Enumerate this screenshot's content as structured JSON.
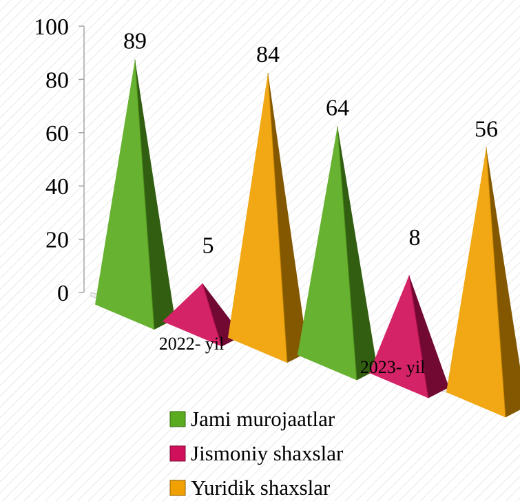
{
  "chart_data": {
    "type": "bar",
    "subtype": "3d-pyramid",
    "categories": [
      "2022- yil",
      "2023- yil"
    ],
    "series": [
      {
        "name": "Jami murojaatlar",
        "values": [
          89,
          64
        ],
        "color": "#5aab1f"
      },
      {
        "name": "Jismoniy shaxslar",
        "values": [
          5,
          8
        ],
        "color": "#d0105a"
      },
      {
        "name": "Yuridik shaxslar",
        "values": [
          84,
          56
        ],
        "color": "#f0a000"
      }
    ],
    "data_labels": [
      [
        "89",
        "64"
      ],
      [
        "5",
        "8"
      ],
      [
        "84",
        "56"
      ]
    ],
    "y_ticks": [
      "0",
      "20",
      "40",
      "60",
      "80",
      "100"
    ],
    "ylim": [
      0,
      100
    ],
    "legend_position": "bottom",
    "grid": false,
    "background": "diagonal-hatch"
  }
}
